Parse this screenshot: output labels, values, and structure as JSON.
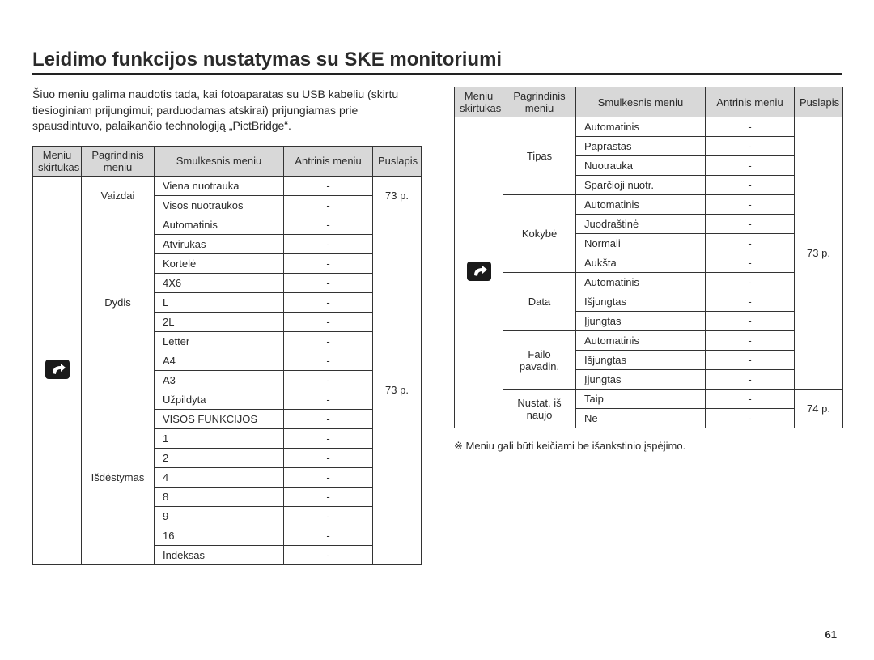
{
  "title": "Leidimo funkcijos nustatymas su SKE monitoriumi",
  "intro": "Šiuo meniu galima naudotis tada, kai fotoaparatas su USB kabeliu (skirtu tiesioginiam prijungimui; parduodamas atskirai) prijungiamas prie spausdintuvo, palaikančio technologiją „PictBridge“.",
  "headers": {
    "tab": "Meniu skirtukas",
    "main": "Pagrindinis meniu",
    "sub": "Smulkesnis meniu",
    "sec": "Antrinis meniu",
    "page": "Puslapis"
  },
  "leftTable": {
    "groups": [
      {
        "main": "Vaizdai",
        "page": "73 p.",
        "rows": [
          {
            "sub": "Viena nuotrauka",
            "sec": "-"
          },
          {
            "sub": "Visos nuotraukos",
            "sec": "-"
          }
        ]
      },
      {
        "main": "Dydis",
        "page": "73 p.",
        "rows": [
          {
            "sub": "Automatinis",
            "sec": "-"
          },
          {
            "sub": "Atvirukas",
            "sec": "-"
          },
          {
            "sub": "Kortelė",
            "sec": "-"
          },
          {
            "sub": "4X6",
            "sec": "-"
          },
          {
            "sub": "L",
            "sec": "-"
          },
          {
            "sub": "2L",
            "sec": "-"
          },
          {
            "sub": "Letter",
            "sec": "-"
          },
          {
            "sub": "A4",
            "sec": "-"
          },
          {
            "sub": "A3",
            "sec": "-"
          }
        ]
      },
      {
        "main": "Išdėstymas",
        "page": "",
        "rows": [
          {
            "sub": "Užpildyta",
            "sec": "-"
          },
          {
            "sub": "VISOS FUNKCIJOS",
            "sec": "-"
          },
          {
            "sub": "1",
            "sec": "-"
          },
          {
            "sub": "2",
            "sec": "-"
          },
          {
            "sub": "4",
            "sec": "-"
          },
          {
            "sub": "8",
            "sec": "-"
          },
          {
            "sub": "9",
            "sec": "-"
          },
          {
            "sub": "16",
            "sec": "-"
          },
          {
            "sub": "Indeksas",
            "sec": "-"
          }
        ]
      }
    ],
    "pageSpans": [
      {
        "text": "73 p.",
        "rows": 2
      },
      {
        "text": "73 p.",
        "rows": 18
      }
    ]
  },
  "rightTable": {
    "groups": [
      {
        "main": "Tipas",
        "rows": [
          {
            "sub": "Automatinis",
            "sec": "-"
          },
          {
            "sub": "Paprastas",
            "sec": "-"
          },
          {
            "sub": "Nuotrauka",
            "sec": "-"
          },
          {
            "sub": "Sparčioji nuotr.",
            "sec": "-"
          }
        ]
      },
      {
        "main": "Kokybė",
        "rows": [
          {
            "sub": "Automatinis",
            "sec": "-"
          },
          {
            "sub": "Juodraštinė",
            "sec": "-"
          },
          {
            "sub": "Normali",
            "sec": "-"
          },
          {
            "sub": "Aukšta",
            "sec": "-"
          }
        ]
      },
      {
        "main": "Data",
        "rows": [
          {
            "sub": "Automatinis",
            "sec": "-"
          },
          {
            "sub": "Išjungtas",
            "sec": "-"
          },
          {
            "sub": "Įjungtas",
            "sec": "-"
          }
        ]
      },
      {
        "main": "Failo pavadin.",
        "rows": [
          {
            "sub": "Automatinis",
            "sec": "-"
          },
          {
            "sub": "Išjungtas",
            "sec": "-"
          },
          {
            "sub": "Įjungtas",
            "sec": "-"
          }
        ]
      },
      {
        "main": "Nustat. iš naujo",
        "rows": [
          {
            "sub": "Taip",
            "sec": "-"
          },
          {
            "sub": "Ne",
            "sec": "-"
          }
        ]
      }
    ],
    "pageSpans": [
      {
        "text": "73 p.",
        "rows": 14
      },
      {
        "text": "74 p.",
        "rows": 2
      }
    ]
  },
  "note": "※  Meniu gali būti keičiami be išankstinio įspėjimo.",
  "pagenum": "61",
  "style": {
    "header_bg": "#d8d8d8",
    "border_color": "#333333",
    "font_size_body": 13,
    "font_size_title": 24
  }
}
